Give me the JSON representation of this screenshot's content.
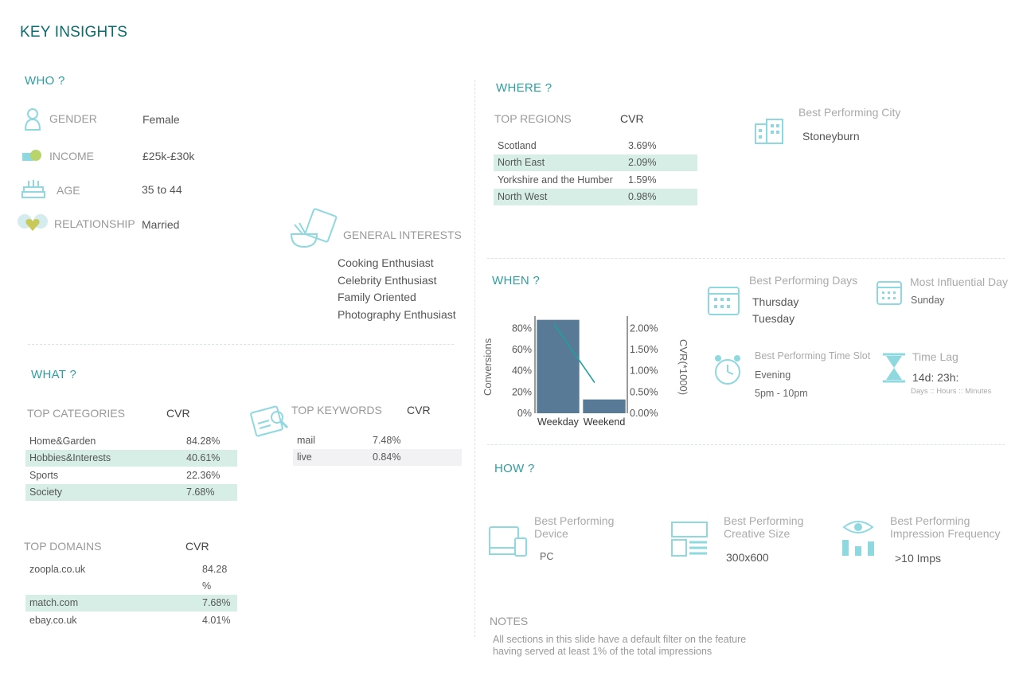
{
  "title": "KEY INSIGHTS",
  "who": {
    "heading": "WHO ?",
    "rows": [
      {
        "label": "GENDER",
        "value": "Female",
        "icon": "person-icon"
      },
      {
        "label": "INCOME",
        "value": "£25k-£30k",
        "icon": "money-icon"
      },
      {
        "label": "AGE",
        "value": "35 to 44",
        "icon": "cake-icon"
      },
      {
        "label": "RELATIONSHIP",
        "value": "Married",
        "icon": "heart-icon"
      }
    ],
    "interests": {
      "label": "GENERAL INTERESTS",
      "items": [
        "Cooking Enthusiast",
        "Celebrity Enthusiast",
        "Family Oriented",
        "Photography Enthusiast"
      ]
    }
  },
  "what": {
    "heading": "WHAT ?",
    "categories": {
      "label": "TOP CATEGORIES",
      "cvr": "CVR",
      "rows": [
        {
          "name": "Home&Garden",
          "value": "84.28%"
        },
        {
          "name": "Hobbies&Interests",
          "value": "40.61%"
        },
        {
          "name": "Sports",
          "value": "22.36%"
        },
        {
          "name": "Society",
          "value": "7.68%"
        }
      ]
    },
    "keywords": {
      "label": "TOP KEYWORDS",
      "cvr": "CVR",
      "rows": [
        {
          "name": "mail",
          "value": "7.48%"
        },
        {
          "name": "live",
          "value": "0.84%"
        }
      ]
    },
    "domains": {
      "label": "TOP DOMAINS",
      "cvr": "CVR",
      "rows": [
        {
          "name": "zoopla.co.uk",
          "value": "84.28",
          "value2": "%"
        },
        {
          "name": "match.com",
          "value": "7.68%"
        },
        {
          "name": "ebay.co.uk",
          "value": "4.01%"
        }
      ]
    }
  },
  "where": {
    "heading": "WHERE ?",
    "regions": {
      "label": "TOP REGIONS",
      "cvr": "CVR",
      "rows": [
        {
          "name": "Scotland",
          "value": "3.69%"
        },
        {
          "name": "North East",
          "value": "2.09%"
        },
        {
          "name": "Yorkshire and the Humber",
          "value": "1.59%"
        },
        {
          "name": "North West",
          "value": "0.98%"
        }
      ]
    },
    "city": {
      "label": "Best Performing City",
      "value": "Stoneyburn"
    }
  },
  "when": {
    "heading": "WHEN ?",
    "days": {
      "label": "Best Performing Days",
      "values": [
        "Thursday",
        "Tuesday"
      ]
    },
    "influential": {
      "label": "Most Influential Day",
      "value": "Sunday"
    },
    "timeslot": {
      "label": "Best Performing Time Slot",
      "value": "Evening",
      "range": "5pm - 10pm"
    },
    "lag": {
      "label": "Time Lag",
      "value": "14d: 23h:",
      "units": "Days :: Hours :: Minutes"
    }
  },
  "chart_data": {
    "type": "bar",
    "categories": [
      "Weekday",
      "Weekend"
    ],
    "series": [
      {
        "values": [
          88,
          13
        ],
        "axis": "left"
      },
      {
        "values": [
          2.1,
          0.72
        ],
        "axis": "right",
        "type": "line"
      }
    ],
    "ylabel": "Conversions",
    "y2label": "CVR(*1000)",
    "y_ticks": [
      "0%",
      "20%",
      "40%",
      "60%",
      "80%"
    ],
    "y2_ticks": [
      "0.00%",
      "0.50%",
      "1.00%",
      "1.50%",
      "2.00%"
    ],
    "ylim": [
      0,
      90
    ],
    "y2lim": [
      0,
      2.25
    ],
    "bar_color": "#587a96",
    "line_color": "#1fa0a0"
  },
  "how": {
    "heading": "HOW ?",
    "device": {
      "label1": "Best Performing",
      "label2": "Device",
      "value": "PC"
    },
    "creative": {
      "label1": "Best Performing",
      "label2": "Creative Size",
      "value": "300x600"
    },
    "frequency": {
      "label1": "Best Performing",
      "label2": "Impression Frequency",
      "value": ">10 Imps"
    }
  },
  "notes": {
    "heading": "NOTES",
    "line1": "All sections in this slide have a default filter on the feature",
    "line2": "having served at least 1% of the total impressions"
  },
  "colors": {
    "teal": "#2e9ea0",
    "highlight": "#d6eee6",
    "icon": "#8fd8e0"
  }
}
